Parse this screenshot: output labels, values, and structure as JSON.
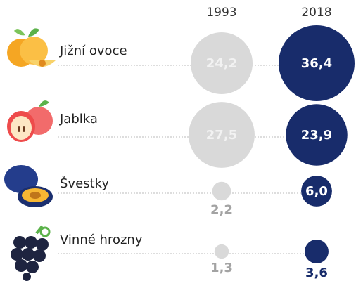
{
  "chart_data": {
    "type": "bubble",
    "categories": [
      "Jižní ovoce",
      "Jablka",
      "Švestky",
      "Vinné hrozny"
    ],
    "series": [
      {
        "name": "1993",
        "color": "#d9d9d9",
        "values": [
          24.2,
          27.5,
          2.2,
          1.3
        ],
        "value_labels": [
          "24,2",
          "27,5",
          "2,2",
          "1,3"
        ]
      },
      {
        "name": "2018",
        "color": "#182c6b",
        "values": [
          36.4,
          23.9,
          6.0,
          3.6
        ],
        "value_labels": [
          "36,4",
          "23,9",
          "6,0",
          "3,6"
        ]
      }
    ]
  }
}
